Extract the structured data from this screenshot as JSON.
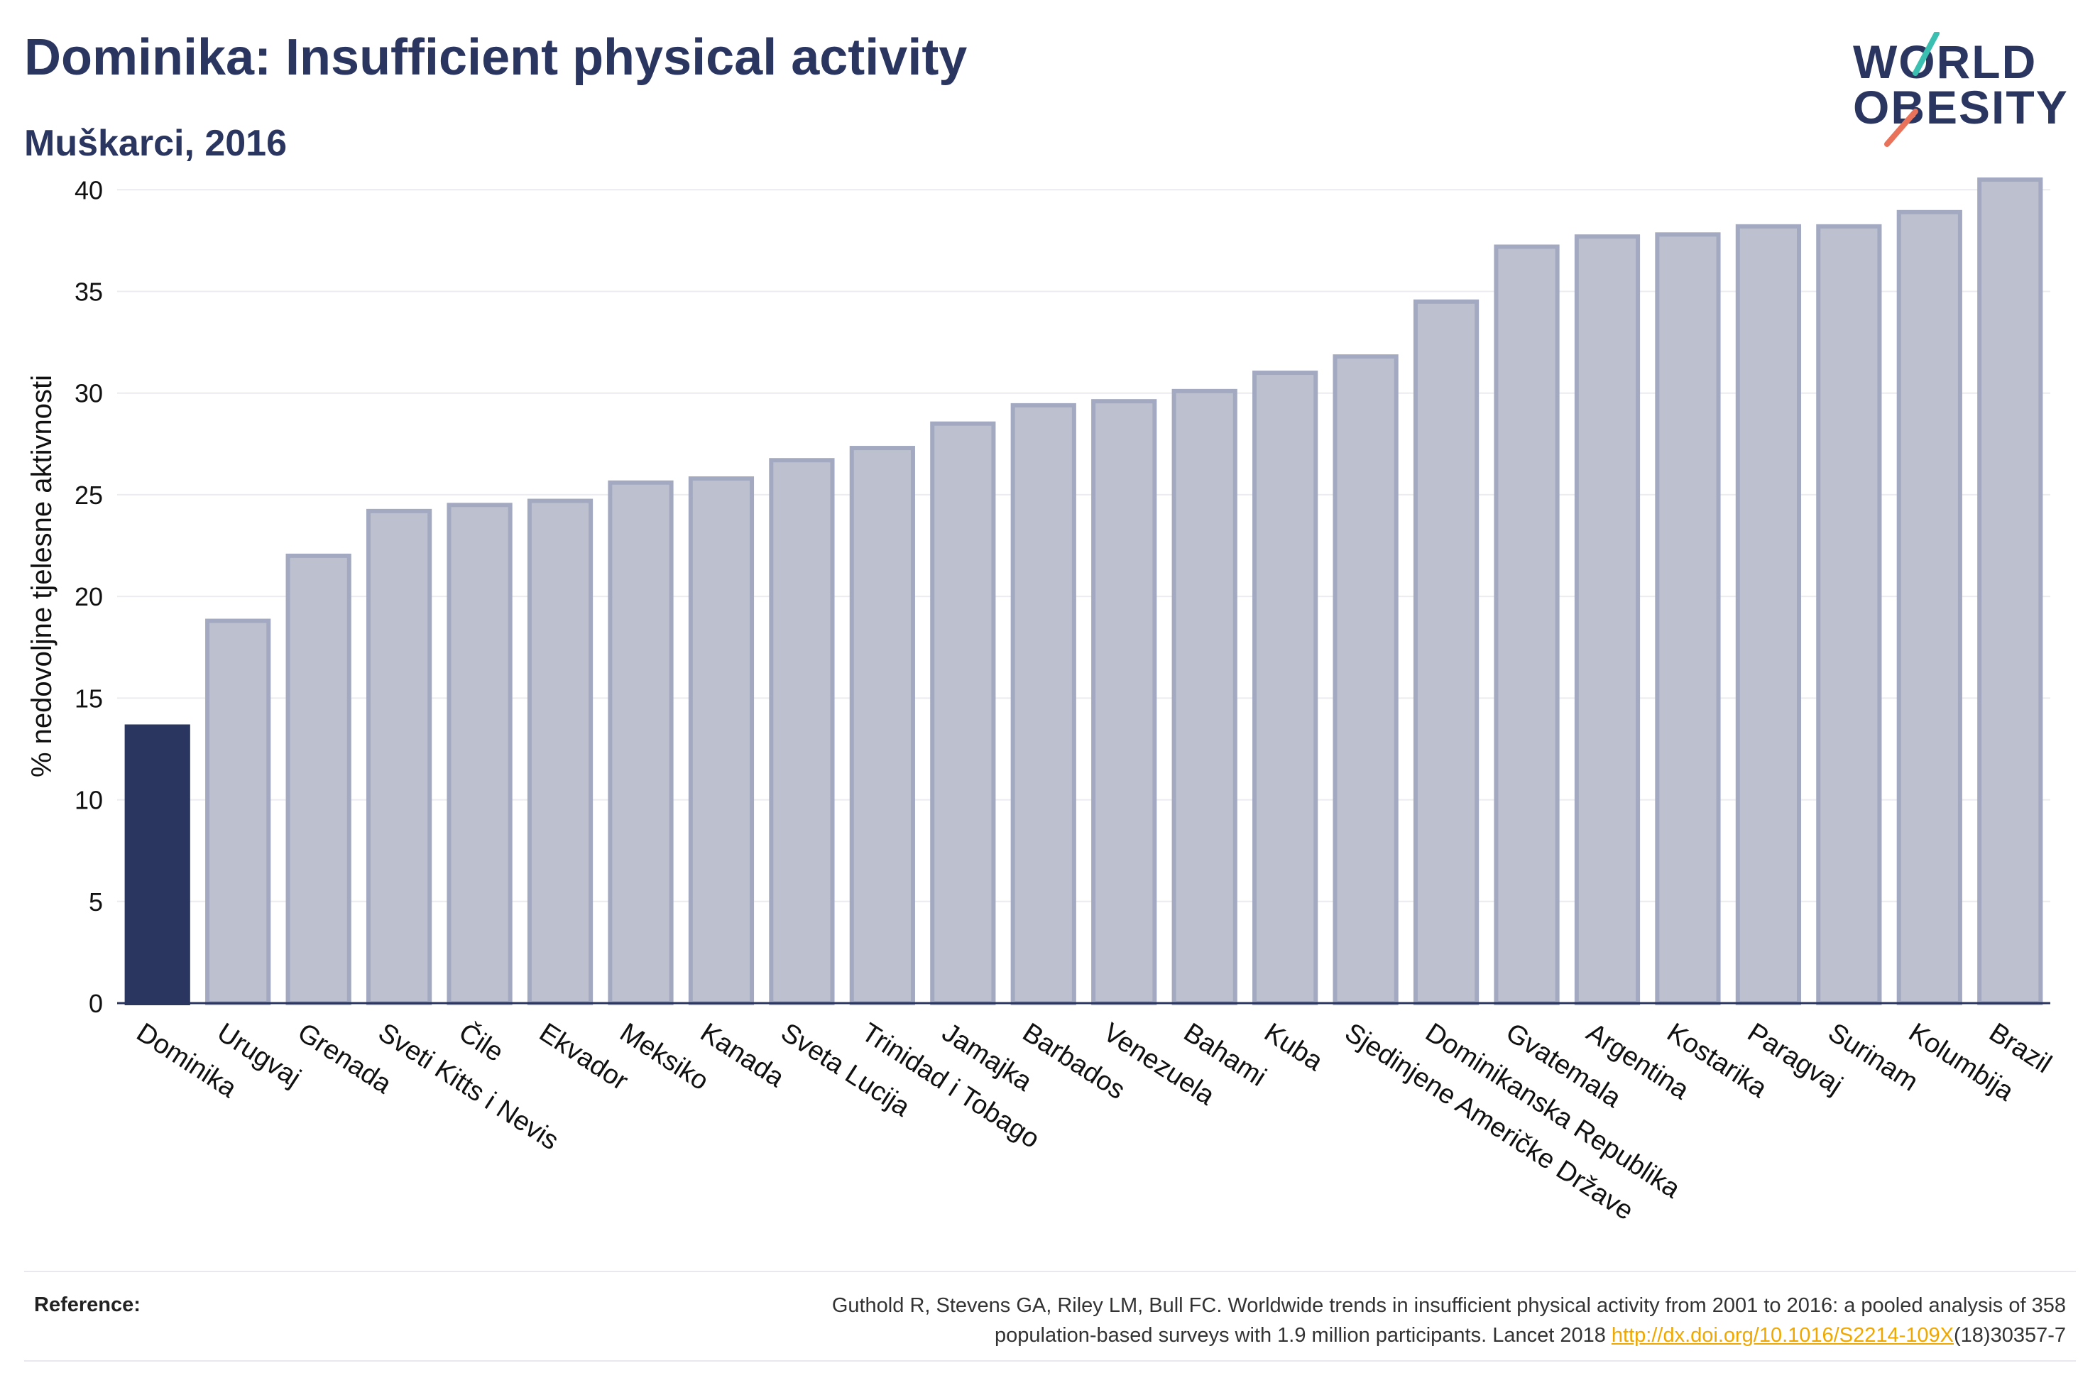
{
  "header": {
    "title": "Dominika: Insufficient physical activity",
    "subtitle": "Muškarci, 2016"
  },
  "logo": {
    "line1": "WORLD",
    "line2": "OBESITY"
  },
  "chart_data": {
    "type": "bar",
    "ylabel": "% nedovoljne tjelesne aktivnosti",
    "xlabel": "",
    "ylim": [
      0,
      42
    ],
    "yticks": [
      0,
      5,
      10,
      15,
      20,
      25,
      30,
      35,
      40
    ],
    "grid": true,
    "highlight": "Dominika",
    "categories": [
      "Dominika",
      "Urugvaj",
      "Grenada",
      "Sveti Kitts i Nevis",
      "Čile",
      "Ekvador",
      "Meksiko",
      "Kanada",
      "Sveta Lucija",
      "Trinidad i Tobago",
      "Jamajka",
      "Barbados",
      "Venezuela",
      "Bahami",
      "Kuba",
      "Sjedinjene Američke Države",
      "Dominikanska Republika",
      "Gvatemala",
      "Argentina",
      "Kostarika",
      "Paragvaj",
      "Surinam",
      "Kolumbija",
      "Brazil"
    ],
    "values": [
      13.6,
      18.8,
      22.0,
      24.2,
      24.5,
      24.7,
      25.6,
      25.8,
      26.7,
      27.3,
      28.5,
      29.4,
      29.6,
      30.1,
      31.0,
      31.8,
      34.5,
      37.2,
      37.7,
      37.8,
      38.2,
      38.2,
      38.9,
      40.5
    ],
    "colors": {
      "highlight": "#2b3660",
      "bar_fill": "#bcc0cf",
      "bar_stroke": "#a3a9c0",
      "grid": "#ececf0",
      "axis": "#2b3660"
    }
  },
  "reference": {
    "label": "Reference:",
    "text_line1": "Guthold R, Stevens GA, Riley LM, Bull FC. Worldwide trends in insufficient physical activity from 2001 to 2016: a pooled analysis of 358",
    "text_line2_pre": "population-based surveys with 1.9 million participants. Lancet 2018 ",
    "link": "http://dx.doi.org/10.1016/S2214-109X",
    "text_line2_post": "(18)30357-7"
  }
}
